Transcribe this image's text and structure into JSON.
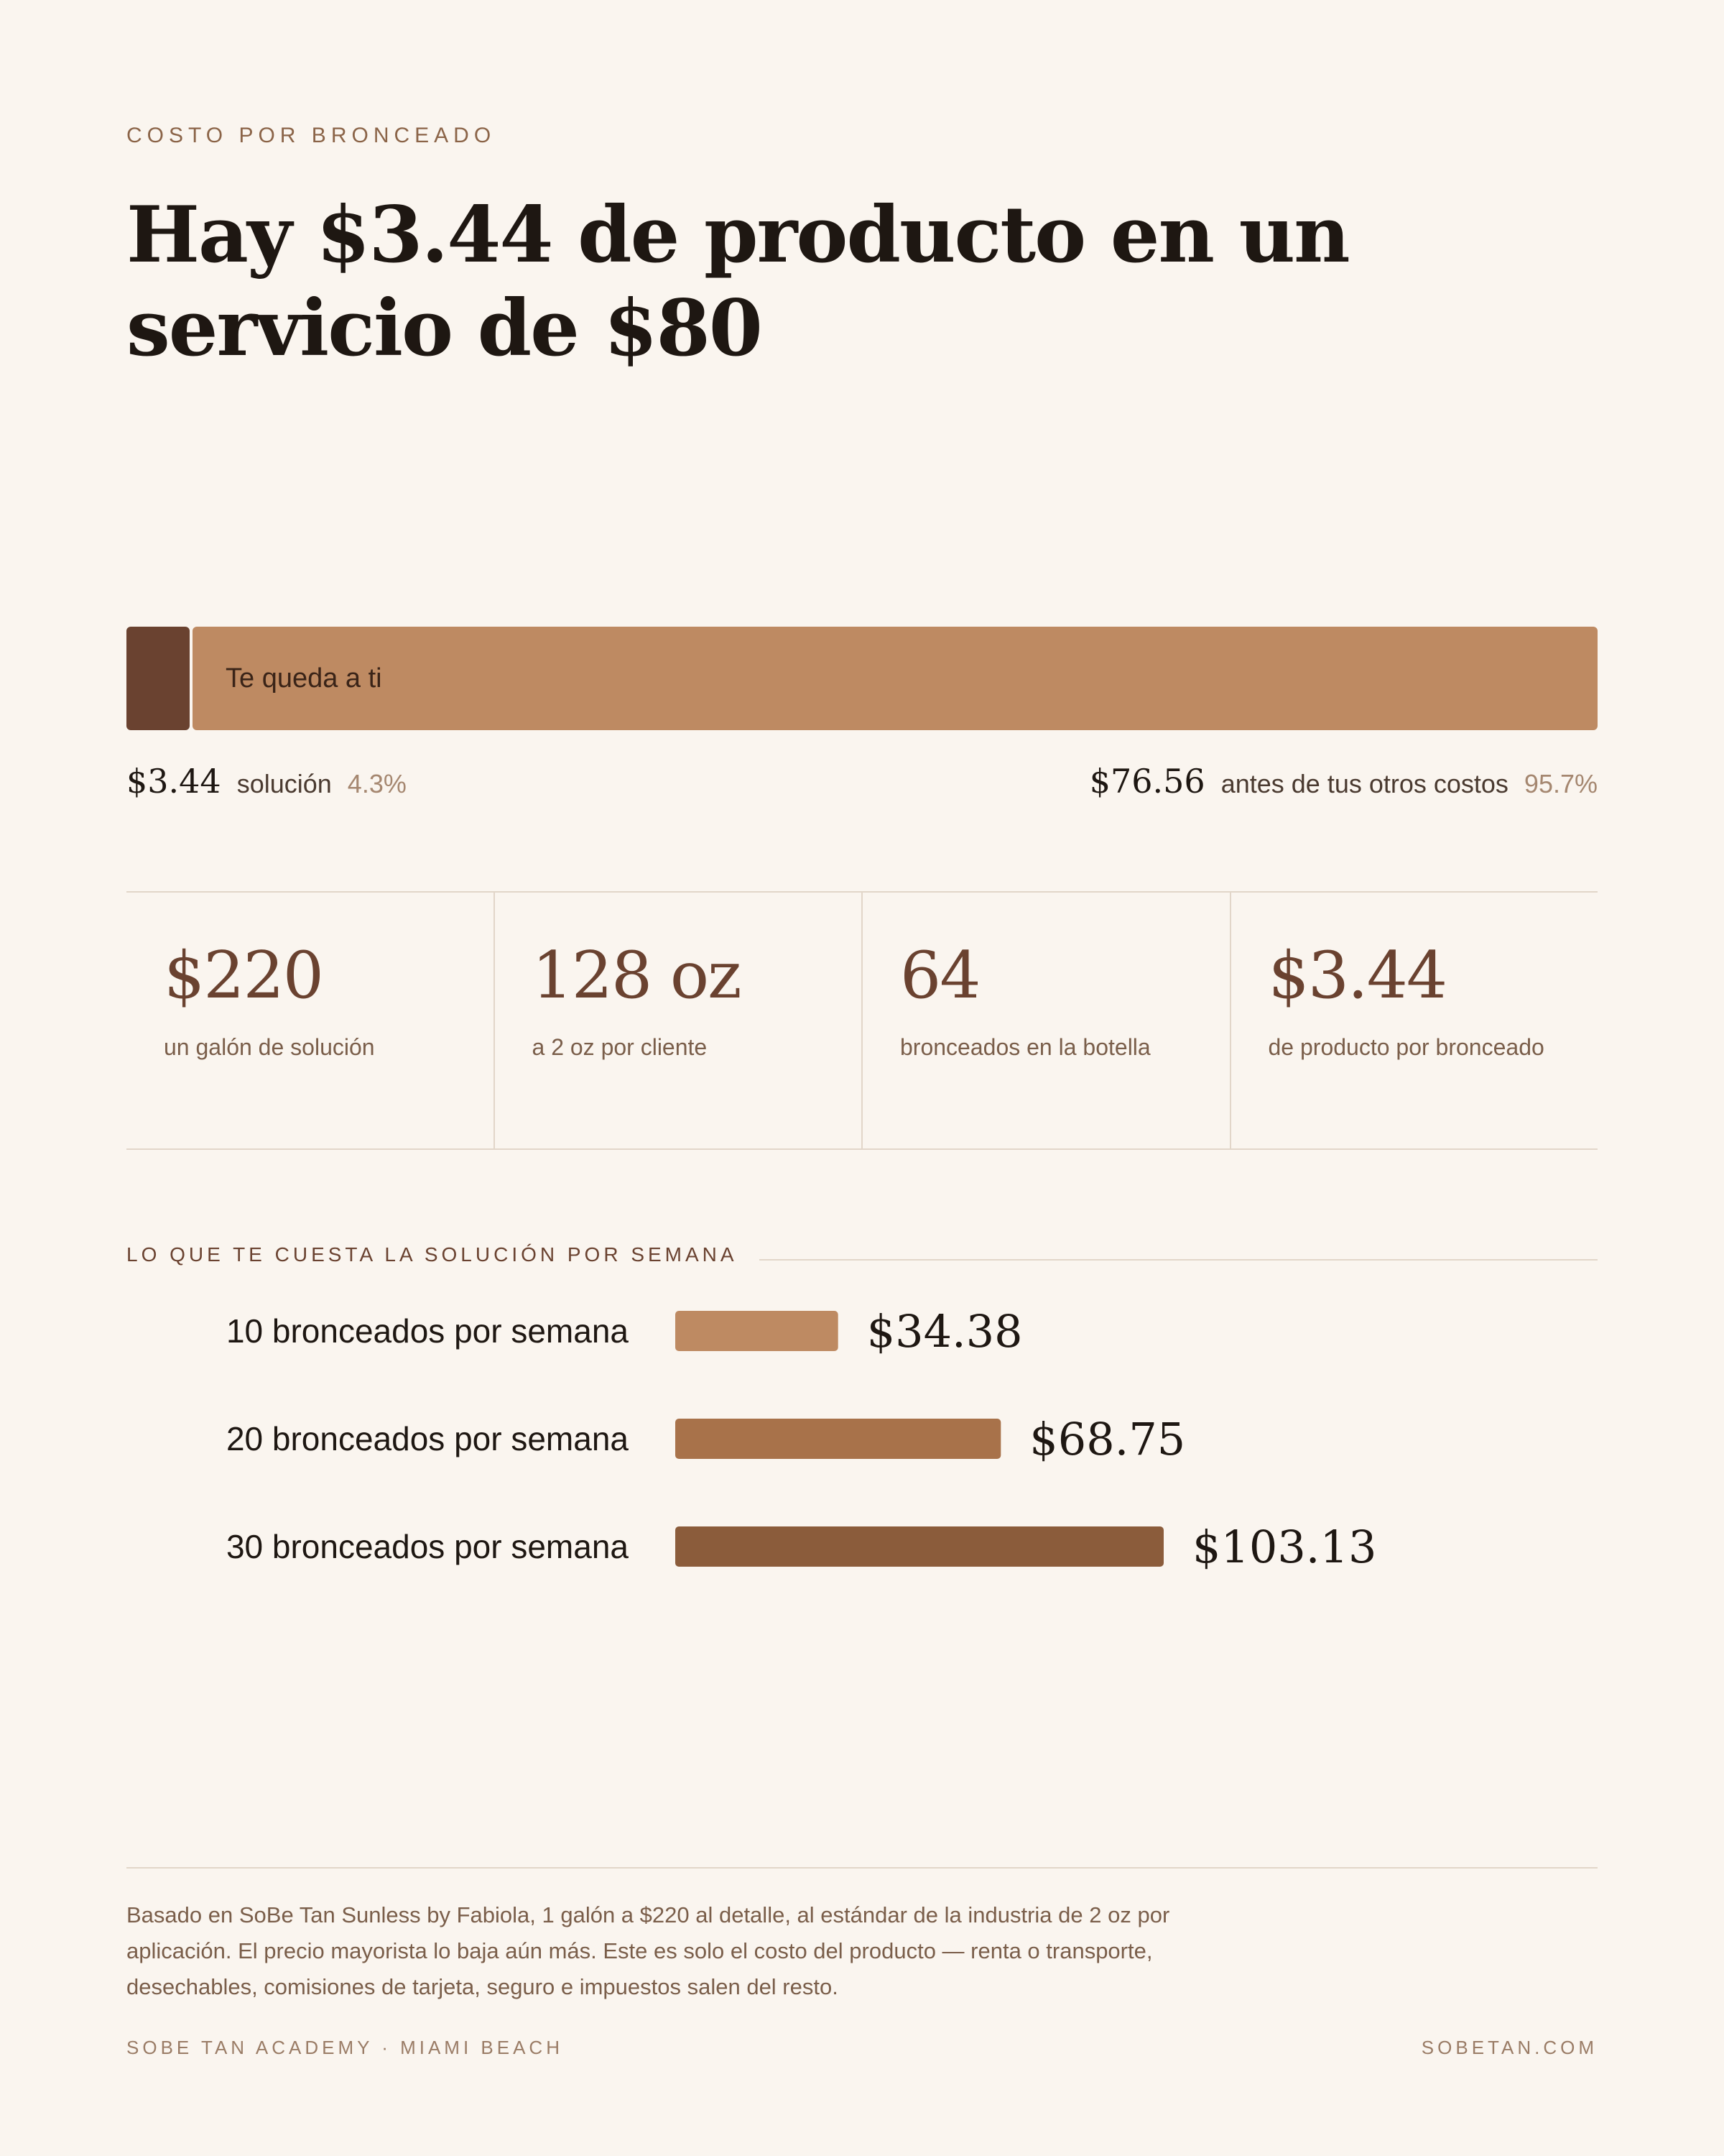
{
  "eyebrow": "COSTO POR BRONCEADO",
  "headline": "Hay $3.44 de producto en un servicio de $80",
  "split": {
    "total": 80,
    "product_amount": "$3.44",
    "product_value": 3.44,
    "product_label": "solución",
    "product_pct": "4.3%",
    "rest_inner_label": "Te queda a ti",
    "rest_amount": "$76.56",
    "rest_value": 76.56,
    "rest_label": "antes de tus otros costos",
    "rest_pct": "95.7%",
    "colors": {
      "product": "#6a4230",
      "rest": "#be8a62"
    }
  },
  "stats": [
    {
      "value": "$220",
      "label": "un galón de solución"
    },
    {
      "value": "128 oz",
      "label": "a 2 oz por cliente"
    },
    {
      "value": "64",
      "label": "bronceados en la botella"
    },
    {
      "value": "$3.44",
      "label": "de producto por bronceado"
    }
  ],
  "weekly": {
    "title": "LO QUE TE CUESTA LA SOLUCIÓN POR SEMANA"
  },
  "chart_data": {
    "type": "bar",
    "orientation": "horizontal",
    "categories": [
      "10 bronceados por semana",
      "20 bronceados por semana",
      "30 bronceados por semana"
    ],
    "values": [
      34.38,
      68.75,
      103.13
    ],
    "value_labels": [
      "$34.38",
      "$68.75",
      "$103.13"
    ],
    "colors": [
      "#be8a62",
      "#a8724a",
      "#8b5c3b"
    ],
    "title": "",
    "xlabel": "",
    "ylabel": "",
    "grid": false
  },
  "footer": {
    "note": "Basado en SoBe Tan Sunless by Fabiola, 1 galón a $220 al detalle, al estándar de la industria de 2 oz por aplicación. El precio mayorista lo baja aún más. Este es solo el costo del producto — renta o transporte, desechables, comisiones de tarjeta, seguro e impuestos salen del resto.",
    "left": "SOBE TAN ACADEMY · MIAMI BEACH",
    "right": "SOBETAN.COM"
  }
}
